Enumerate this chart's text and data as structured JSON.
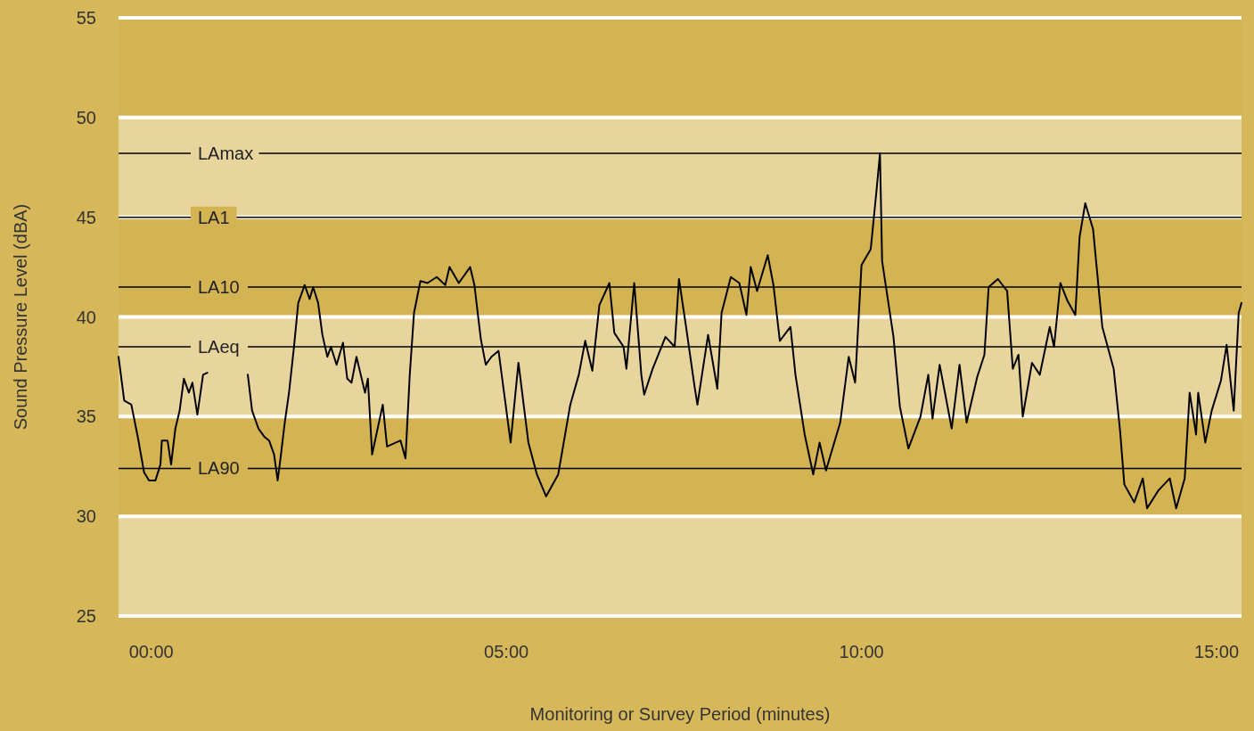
{
  "chart_data": {
    "type": "line",
    "xlabel": "Monitoring or Survey Period (minutes)",
    "ylabel": "Sound Pressure Level (dBA)",
    "xlim": [
      -0.46,
      15.35
    ],
    "ylim": [
      25,
      55
    ],
    "xticks": [
      {
        "value": 0,
        "label": "00:00"
      },
      {
        "value": 5,
        "label": "05:00"
      },
      {
        "value": 10,
        "label": "10:00"
      },
      {
        "value": 15,
        "label": "15:00"
      }
    ],
    "yticks": [
      25,
      30,
      35,
      40,
      45,
      50,
      55
    ],
    "grid": "y",
    "marker": "none",
    "line_style": "solid",
    "bands": [
      {
        "axis": "y",
        "from": 25,
        "to": 30,
        "color": "#e8d59e"
      },
      {
        "axis": "y",
        "from": 30,
        "to": 35,
        "color": "#d3b352"
      },
      {
        "axis": "y",
        "from": 35,
        "to": 40,
        "color": "#e8d59e"
      },
      {
        "axis": "y",
        "from": 40,
        "to": 45,
        "color": "#d3b352"
      },
      {
        "axis": "y",
        "from": 45,
        "to": 50,
        "color": "#e8d59e"
      },
      {
        "axis": "y",
        "from": 50,
        "to": 55,
        "color": "#d3b352"
      }
    ],
    "ref_lines": [
      {
        "axis": "y",
        "value": 48.2,
        "label": "LAmax",
        "color": "#000000"
      },
      {
        "axis": "y",
        "value": 45,
        "label": "LA1",
        "color": "#000000"
      },
      {
        "axis": "y",
        "value": 41.5,
        "label": "LA10",
        "color": "#000000"
      },
      {
        "axis": "y",
        "value": 38.5,
        "label": "LAeq",
        "color": "#000000"
      },
      {
        "axis": "y",
        "value": 32.4,
        "label": "LA90",
        "color": "#000000"
      }
    ],
    "series": [
      {
        "color": "#000000",
        "x": [
          -0.46,
          -0.38,
          -0.28,
          -0.19,
          -0.1,
          -0.03,
          0.06,
          0.13,
          0.15,
          0.23,
          0.28,
          0.34,
          0.4,
          0.46,
          0.53,
          0.58,
          0.65,
          0.73,
          0.79,
          0.9,
          1.36,
          1.42,
          1.51,
          1.59,
          1.66,
          1.73,
          1.78,
          1.82,
          1.88,
          1.94,
          2.01,
          2.07,
          2.16,
          2.23,
          2.28,
          2.35,
          2.41,
          2.48,
          2.53,
          2.61,
          2.7,
          2.76,
          2.82,
          2.89,
          2.95,
          3.01,
          3.05,
          3.11,
          3.26,
          3.32,
          3.51,
          3.58,
          3.64,
          3.7,
          3.79,
          3.89,
          4.02,
          4.14,
          4.2,
          4.33,
          4.49,
          4.55,
          4.64,
          4.71,
          4.79,
          4.89,
          5.06,
          5.17,
          5.31,
          5.43,
          5.56,
          5.73,
          5.9,
          6.02,
          6.11,
          6.21,
          6.31,
          6.45,
          6.52,
          6.65,
          6.69,
          6.8,
          6.9,
          6.94,
          7.06,
          7.24,
          7.37,
          7.43,
          7.53,
          7.65,
          7.69,
          7.84,
          7.97,
          8.03,
          8.16,
          8.28,
          8.38,
          8.44,
          8.53,
          8.68,
          8.76,
          8.85,
          9.0,
          9.07,
          9.2,
          9.32,
          9.41,
          9.5,
          9.7,
          9.82,
          9.91,
          10.0,
          10.13,
          10.21,
          10.26,
          10.29,
          10.45,
          10.54,
          10.66,
          10.83,
          10.94,
          11.0,
          11.1,
          11.27,
          11.38,
          11.48,
          11.63,
          11.73,
          11.79,
          11.92,
          12.05,
          12.13,
          12.21,
          12.27,
          12.4,
          12.51,
          12.65,
          12.71,
          12.8,
          12.9,
          13.01,
          13.07,
          13.15,
          13.26,
          13.39,
          13.55,
          13.64,
          13.7,
          13.84,
          13.96,
          14.02,
          14.18,
          14.34,
          14.43,
          14.55,
          14.62,
          14.71,
          14.74,
          14.84,
          14.93,
          15.06,
          15.14,
          15.24,
          15.31,
          15.35
        ],
        "values": [
          38.0,
          35.8,
          35.6,
          34.0,
          32.2,
          31.8,
          31.8,
          32.6,
          33.8,
          33.8,
          32.6,
          34.4,
          35.3,
          36.9,
          36.2,
          36.7,
          35.1,
          37.1,
          37.2,
          null,
          37.1,
          35.3,
          34.4,
          34.0,
          33.8,
          33.1,
          31.8,
          32.9,
          34.7,
          36.2,
          38.5,
          40.7,
          41.6,
          40.9,
          41.5,
          40.7,
          39.1,
          38.0,
          38.5,
          37.6,
          38.7,
          36.9,
          36.7,
          38.0,
          37.1,
          36.2,
          36.9,
          33.1,
          35.6,
          33.5,
          33.8,
          32.9,
          37.1,
          40.2,
          41.8,
          41.7,
          42.0,
          41.6,
          42.5,
          41.7,
          42.5,
          41.6,
          38.9,
          37.6,
          38.0,
          38.3,
          33.7,
          37.7,
          33.7,
          32.1,
          31.0,
          32.1,
          35.6,
          37.1,
          38.8,
          37.3,
          40.6,
          41.7,
          39.2,
          38.5,
          37.4,
          41.7,
          37.1,
          36.1,
          37.4,
          39.0,
          38.5,
          41.9,
          39.5,
          36.5,
          35.6,
          39.1,
          36.4,
          40.2,
          42.0,
          41.7,
          40.1,
          42.5,
          41.3,
          43.1,
          41.6,
          38.8,
          39.5,
          37.1,
          34.1,
          32.1,
          33.7,
          32.3,
          34.7,
          38.0,
          36.7,
          42.6,
          43.4,
          46.3,
          48.2,
          42.8,
          39.0,
          35.5,
          33.4,
          35.0,
          37.1,
          34.9,
          37.6,
          34.4,
          37.6,
          34.7,
          37.0,
          38.1,
          41.5,
          41.9,
          41.3,
          37.4,
          38.1,
          35.0,
          37.7,
          37.1,
          39.5,
          38.5,
          41.7,
          40.8,
          40.1,
          44.0,
          45.7,
          44.4,
          39.5,
          37.4,
          34.3,
          31.6,
          30.7,
          31.9,
          30.4,
          31.3,
          31.9,
          30.4,
          31.9,
          36.2,
          34.1,
          36.2,
          33.7,
          35.3,
          36.8,
          38.6,
          35.3,
          40.2,
          40.7
        ]
      }
    ]
  }
}
